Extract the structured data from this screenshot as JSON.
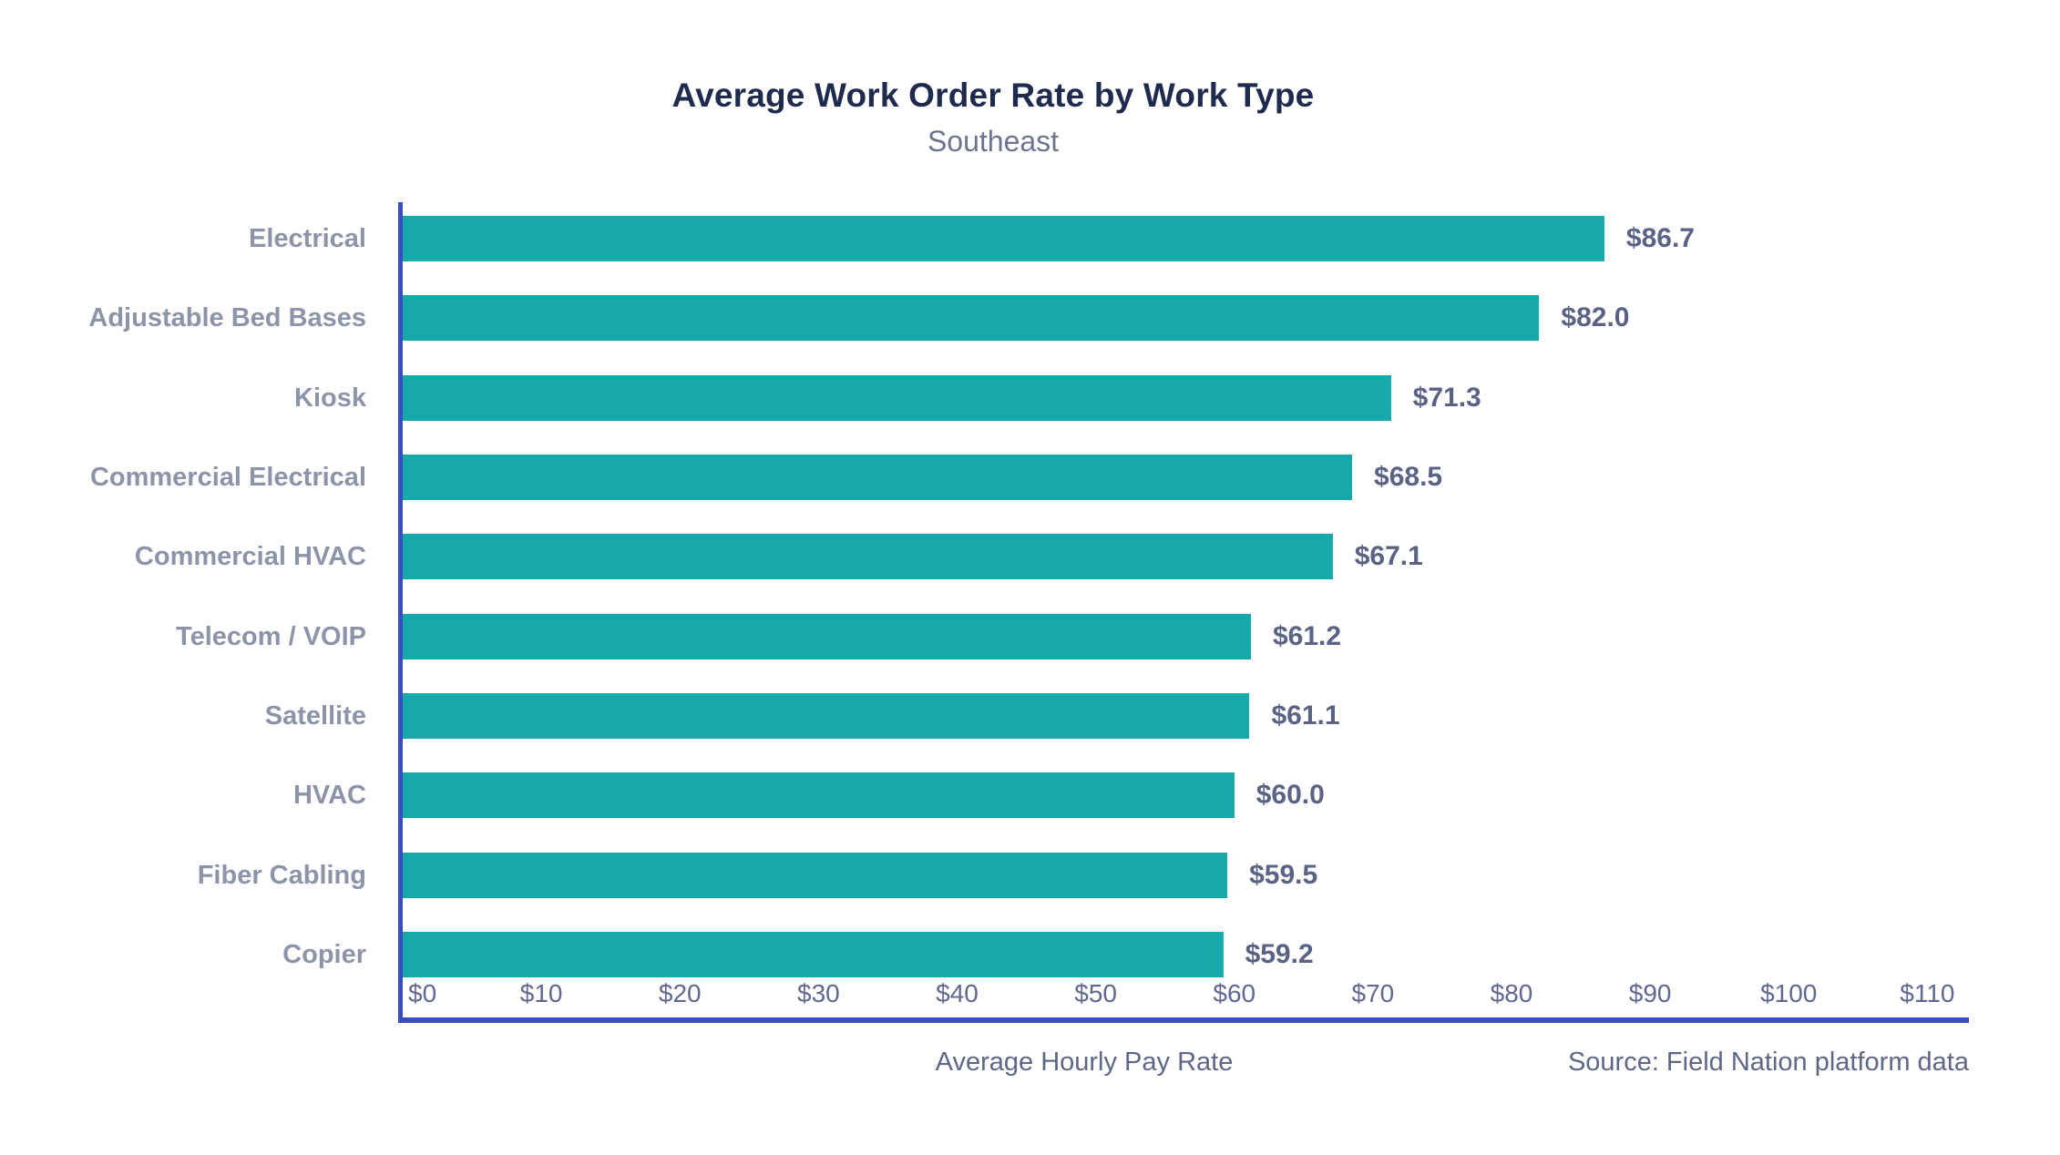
{
  "header": {
    "title": "Average Work Order Rate by Work Type",
    "subtitle": "Southeast"
  },
  "footer": {
    "xlabel": "Average Hourly Pay Rate",
    "source": "Source: Field Nation platform data"
  },
  "chart_data": {
    "type": "bar",
    "orientation": "horizontal",
    "title": "Average Work Order Rate by Work Type",
    "subtitle": "Southeast",
    "categories": [
      "Electrical",
      "Adjustable Bed Bases",
      "Kiosk",
      "Commercial Electrical",
      "Commercial HVAC",
      "Telecom / VOIP",
      "Satellite",
      "HVAC",
      "Fiber Cabling",
      "Copier"
    ],
    "values": [
      86.7,
      82.0,
      71.3,
      68.5,
      67.1,
      61.2,
      61.1,
      60.0,
      59.5,
      59.2
    ],
    "value_labels": [
      "$86.7",
      "$82.0",
      "$71.3",
      "$68.5",
      "$67.1",
      "$61.2",
      "$61.1",
      "$60.0",
      "$59.5",
      "$59.2"
    ],
    "xlabel": "Average Hourly Pay Rate",
    "ylabel": "",
    "x_ticks": [
      0,
      10,
      20,
      30,
      40,
      50,
      60,
      70,
      80,
      90,
      100,
      110
    ],
    "x_tick_labels": [
      "$0",
      "$10",
      "$20",
      "$30",
      "$40",
      "$50",
      "$60",
      "$70",
      "$80",
      "$90",
      "$100",
      "$110"
    ],
    "xlim": [
      0,
      113
    ],
    "grid": false,
    "legend": false,
    "bar_color": "#17a8ab",
    "axis_color": "#3b4cc2",
    "title_color": "#1e2b4e",
    "subtitle_color": "#6b7590",
    "category_label_color": "#8b94a8",
    "value_label_color": "#5a6386",
    "tick_label_color": "#5e6890",
    "source": "Source: Field Nation platform data"
  }
}
